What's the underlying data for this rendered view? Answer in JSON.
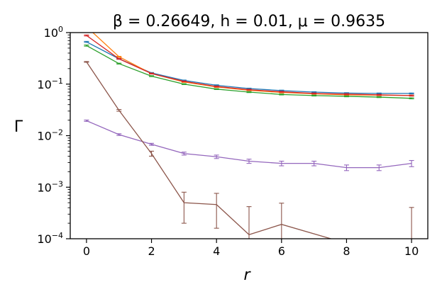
{
  "chart_data": {
    "type": "line",
    "title": "β = 0.26649, h = 0.01, μ = 0.9635",
    "xlabel": "r",
    "ylabel": "Γ",
    "xlim": [
      -0.5,
      10.5
    ],
    "ylim": [
      0.0001,
      1
    ],
    "yscale": "log",
    "grid": false,
    "legend": "none",
    "x_ticks": [
      0,
      2,
      4,
      6,
      8,
      10
    ],
    "x_tick_labels": [
      "0",
      "2",
      "4",
      "6",
      "8",
      "10"
    ],
    "y_ticks": [
      {
        "value": 0.0001,
        "base": "10",
        "exp": "−4"
      },
      {
        "value": 0.001,
        "base": "10",
        "exp": "−3"
      },
      {
        "value": 0.01,
        "base": "10",
        "exp": "−2"
      },
      {
        "value": 0.1,
        "base": "10",
        "exp": "−1"
      },
      {
        "value": 1,
        "base": "10",
        "exp": "0"
      }
    ],
    "series": [
      {
        "color": "#1f77b4",
        "x": [
          0,
          1,
          2,
          3,
          4,
          5,
          6,
          7,
          8,
          9,
          10
        ],
        "y": [
          0.66,
          0.31,
          0.165,
          0.118,
          0.095,
          0.082,
          0.075,
          0.07,
          0.067,
          0.066,
          0.066
        ],
        "err": [
          0.015,
          0.006,
          0.003,
          0.002,
          0.002,
          0.0015,
          0.0015,
          0.0013,
          0.0013,
          0.0013,
          0.0013
        ]
      },
      {
        "color": "#ff7f0e",
        "x": [
          0,
          1,
          2,
          3,
          4,
          5,
          6,
          7,
          8,
          9,
          10
        ],
        "y": [
          1.3,
          0.34,
          0.16,
          0.11,
          0.088,
          0.076,
          0.069,
          0.065,
          0.062,
          0.061,
          0.06
        ],
        "err": [
          0.02,
          0.006,
          0.003,
          0.002,
          0.002,
          0.0015,
          0.0015,
          0.0013,
          0.0013,
          0.0013,
          0.0013
        ]
      },
      {
        "color": "#2ca02c",
        "x": [
          0,
          1,
          2,
          3,
          4,
          5,
          6,
          7,
          8,
          9,
          10
        ],
        "y": [
          0.56,
          0.25,
          0.143,
          0.1,
          0.08,
          0.07,
          0.063,
          0.06,
          0.058,
          0.056,
          0.053
        ],
        "err": [
          0.015,
          0.005,
          0.003,
          0.002,
          0.0015,
          0.0015,
          0.0013,
          0.0012,
          0.0012,
          0.0012,
          0.0012
        ]
      },
      {
        "color": "#d62728",
        "x": [
          0,
          1,
          2,
          3,
          4,
          5,
          6,
          7,
          8,
          9,
          10
        ],
        "y": [
          0.88,
          0.31,
          0.16,
          0.113,
          0.09,
          0.078,
          0.071,
          0.066,
          0.064,
          0.062,
          0.06
        ],
        "err": [
          0.02,
          0.006,
          0.003,
          0.002,
          0.002,
          0.0015,
          0.0015,
          0.0013,
          0.0013,
          0.0013,
          0.0013
        ]
      },
      {
        "color": "#9467bd",
        "x": [
          0,
          1,
          2,
          3,
          4,
          5,
          6,
          7,
          8,
          9,
          10
        ],
        "y": [
          0.0195,
          0.0105,
          0.0068,
          0.0045,
          0.0039,
          0.0032,
          0.0029,
          0.0029,
          0.0024,
          0.0024,
          0.0029
        ],
        "err": [
          0.0006,
          0.0004,
          0.0003,
          0.0003,
          0.0003,
          0.0003,
          0.0003,
          0.0003,
          0.0003,
          0.0003,
          0.0004
        ]
      },
      {
        "color": "#8c564b",
        "x": [
          0,
          1,
          2,
          3,
          4,
          5,
          6,
          10
        ],
        "y": [
          0.27,
          0.031,
          0.0045,
          0.0005,
          0.00046,
          0.00012,
          0.00019,
          3.5e-05
        ],
        "err": [
          0.005,
          0.0012,
          0.0005,
          0.0003,
          0.0003,
          0.0003,
          0.0003,
          0.00037
        ]
      }
    ]
  }
}
